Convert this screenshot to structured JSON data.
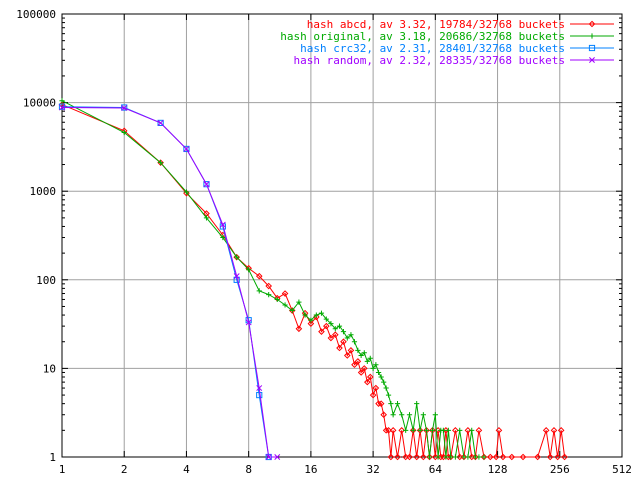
{
  "chart_data": {
    "type": "line",
    "x_scale": "log2",
    "y_scale": "log10",
    "xlim": [
      1,
      512
    ],
    "ylim": [
      1,
      100000
    ],
    "grid": true,
    "legend_position": "top-right",
    "x_ticks": [
      {
        "value": 1,
        "label": "1"
      },
      {
        "value": 2,
        "label": "2"
      },
      {
        "value": 4,
        "label": "4"
      },
      {
        "value": 8,
        "label": "8"
      },
      {
        "value": 16,
        "label": "16"
      },
      {
        "value": 32,
        "label": "32"
      },
      {
        "value": 64,
        "label": "64"
      },
      {
        "value": 128,
        "label": "128"
      },
      {
        "value": 256,
        "label": "256"
      },
      {
        "value": 512,
        "label": "512"
      }
    ],
    "y_ticks": [
      {
        "value": 1,
        "label": "1"
      },
      {
        "value": 10,
        "label": "10"
      },
      {
        "value": 100,
        "label": "100"
      },
      {
        "value": 1000,
        "label": "1000"
      },
      {
        "value": 10000,
        "label": "10000"
      },
      {
        "value": 100000,
        "label": "100000"
      }
    ],
    "series": [
      {
        "name": "hash abcd, av 3.32, 19784/32768 buckets",
        "color": "#ff0000",
        "marker": "diamond",
        "points": [
          [
            1,
            9500
          ],
          [
            2,
            4800
          ],
          [
            3,
            2100
          ],
          [
            4,
            950
          ],
          [
            5,
            560
          ],
          [
            6,
            320
          ],
          [
            7,
            180
          ],
          [
            8,
            135
          ],
          [
            9,
            110
          ],
          [
            10,
            85
          ],
          [
            11,
            62
          ],
          [
            12,
            70
          ],
          [
            13,
            45
          ],
          [
            14,
            28
          ],
          [
            15,
            42
          ],
          [
            16,
            32
          ],
          [
            17,
            38
          ],
          [
            18,
            26
          ],
          [
            19,
            30
          ],
          [
            20,
            22
          ],
          [
            21,
            24
          ],
          [
            22,
            17
          ],
          [
            23,
            20
          ],
          [
            24,
            14
          ],
          [
            25,
            16
          ],
          [
            26,
            11
          ],
          [
            27,
            12
          ],
          [
            28,
            9
          ],
          [
            29,
            10
          ],
          [
            30,
            7
          ],
          [
            31,
            8
          ],
          [
            32,
            5
          ],
          [
            33,
            6
          ],
          [
            34,
            4
          ],
          [
            35,
            4
          ],
          [
            36,
            3
          ],
          [
            37,
            2
          ],
          [
            38,
            2
          ],
          [
            39,
            1
          ],
          [
            40,
            2
          ],
          [
            42,
            1
          ],
          [
            44,
            2
          ],
          [
            46,
            1
          ],
          [
            48,
            1
          ],
          [
            50,
            2
          ],
          [
            52,
            1
          ],
          [
            54,
            2
          ],
          [
            56,
            1
          ],
          [
            58,
            2
          ],
          [
            60,
            1
          ],
          [
            62,
            2
          ],
          [
            64,
            1
          ],
          [
            66,
            2
          ],
          [
            68,
            1
          ],
          [
            70,
            1
          ],
          [
            72,
            2
          ],
          [
            74,
            1
          ],
          [
            76,
            1
          ],
          [
            80,
            2
          ],
          [
            84,
            1
          ],
          [
            88,
            1
          ],
          [
            92,
            2
          ],
          [
            96,
            1
          ],
          [
            100,
            1
          ],
          [
            104,
            2
          ],
          [
            110,
            1
          ],
          [
            118,
            1
          ],
          [
            126,
            1
          ],
          [
            130,
            2
          ],
          [
            136,
            1
          ],
          [
            150,
            1
          ],
          [
            170,
            1
          ],
          [
            200,
            1
          ],
          [
            220,
            2
          ],
          [
            230,
            1
          ],
          [
            240,
            2
          ],
          [
            250,
            1
          ],
          [
            260,
            2
          ],
          [
            270,
            1
          ]
        ]
      },
      {
        "name": "hash original, av 3.18, 20686/32768 buckets",
        "color": "#00aa00",
        "marker": "plus",
        "points": [
          [
            1,
            10500
          ],
          [
            2,
            4600
          ],
          [
            3,
            2100
          ],
          [
            4,
            980
          ],
          [
            5,
            500
          ],
          [
            6,
            300
          ],
          [
            7,
            180
          ],
          [
            8,
            130
          ],
          [
            9,
            75
          ],
          [
            10,
            68
          ],
          [
            11,
            60
          ],
          [
            12,
            52
          ],
          [
            13,
            45
          ],
          [
            14,
            56
          ],
          [
            15,
            40
          ],
          [
            16,
            35
          ],
          [
            17,
            40
          ],
          [
            18,
            42
          ],
          [
            19,
            36
          ],
          [
            20,
            32
          ],
          [
            21,
            28
          ],
          [
            22,
            30
          ],
          [
            23,
            26
          ],
          [
            24,
            22
          ],
          [
            25,
            24
          ],
          [
            26,
            20
          ],
          [
            27,
            16
          ],
          [
            28,
            14
          ],
          [
            29,
            15
          ],
          [
            30,
            12
          ],
          [
            31,
            13
          ],
          [
            32,
            10
          ],
          [
            33,
            11
          ],
          [
            34,
            9
          ],
          [
            35,
            8
          ],
          [
            36,
            7
          ],
          [
            37,
            6
          ],
          [
            38,
            5
          ],
          [
            39,
            4
          ],
          [
            40,
            3
          ],
          [
            42,
            4
          ],
          [
            44,
            3
          ],
          [
            46,
            2
          ],
          [
            48,
            3
          ],
          [
            50,
            2
          ],
          [
            52,
            4
          ],
          [
            54,
            2
          ],
          [
            56,
            3
          ],
          [
            58,
            2
          ],
          [
            60,
            1
          ],
          [
            62,
            2
          ],
          [
            64,
            3
          ],
          [
            66,
            1
          ],
          [
            68,
            2
          ],
          [
            70,
            2
          ],
          [
            72,
            1
          ],
          [
            74,
            2
          ],
          [
            76,
            1
          ],
          [
            80,
            1
          ],
          [
            84,
            2
          ],
          [
            88,
            1
          ],
          [
            92,
            1
          ],
          [
            96,
            2
          ],
          [
            100,
            1
          ],
          [
            104,
            1
          ],
          [
            110,
            1
          ]
        ]
      },
      {
        "name": "hash crc32, av 2.31, 28401/32768 buckets",
        "color": "#0080ff",
        "marker": "square",
        "points": [
          [
            1,
            9000
          ],
          [
            2,
            8800
          ],
          [
            3,
            5900
          ],
          [
            4,
            3000
          ],
          [
            5,
            1200
          ],
          [
            6,
            400
          ],
          [
            7,
            100
          ],
          [
            8,
            35
          ],
          [
            9,
            5
          ],
          [
            10,
            1
          ]
        ]
      },
      {
        "name": "hash random, av 2.32, 28335/32768 buckets",
        "color": "#a000ff",
        "marker": "cross",
        "points": [
          [
            1,
            8800
          ],
          [
            2,
            8700
          ],
          [
            3,
            5900
          ],
          [
            4,
            3000
          ],
          [
            5,
            1200
          ],
          [
            6,
            420
          ],
          [
            7,
            110
          ],
          [
            8,
            33
          ],
          [
            9,
            6
          ],
          [
            10,
            1
          ],
          [
            11,
            1
          ]
        ]
      }
    ]
  }
}
